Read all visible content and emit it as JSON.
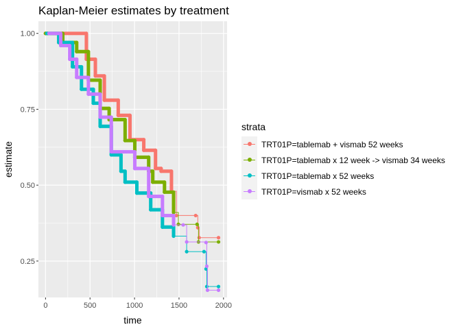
{
  "chart_data": {
    "type": "line",
    "step": true,
    "title": "Kaplan-Meier estimates by treatment",
    "xlabel": "time",
    "ylabel": "estimate",
    "xlim": [
      -80,
      2040
    ],
    "ylim": [
      0.13,
      1.04
    ],
    "xticks": [
      "0",
      "500",
      "1000",
      "1500",
      "2000"
    ],
    "xtick_values": [
      0,
      500,
      1000,
      1500,
      2000
    ],
    "yticks": [
      "0.25",
      "0.50",
      "0.75",
      "1.00"
    ],
    "ytick_values": [
      0.25,
      0.5,
      0.75,
      1.0
    ],
    "grid": true,
    "legend_title": "strata",
    "legend_position": "right",
    "series": [
      {
        "name": "TRT01P=tablemab + vismab 52 weeks",
        "color": "#F8766D",
        "x": [
          0,
          117,
          459,
          560,
          661,
          817,
          949,
          1104,
          1236,
          1299,
          1415,
          1470,
          1687,
          1711,
          1726,
          1944
        ],
        "y": [
          1.0,
          1.0,
          0.915,
          0.86,
          0.78,
          0.73,
          0.65,
          0.615,
          0.555,
          0.546,
          0.48,
          0.4,
          0.4,
          0.36,
          0.327,
          0.327
        ]
      },
      {
        "name": "TRT01P=tablemab x 12 week -> vismab 34 weeks",
        "color": "#7CAE00",
        "x": [
          0,
          194,
          350,
          482,
          614,
          715,
          894,
          1003,
          1159,
          1205,
          1337,
          1439,
          1493,
          1703,
          1719,
          1944
        ],
        "y": [
          1.0,
          0.97,
          0.94,
          0.846,
          0.753,
          0.716,
          0.647,
          0.592,
          0.546,
          0.51,
          0.477,
          0.41,
          0.371,
          0.371,
          0.313,
          0.313
        ]
      },
      {
        "name": "TRT01P=tablemab x 52 weeks",
        "color": "#00BFC4",
        "x": [
          15,
          148,
          303,
          404,
          537,
          614,
          739,
          848,
          894,
          1026,
          1182,
          1314,
          1439,
          1586,
          1781,
          1804,
          1812,
          1944
        ],
        "y": [
          1.0,
          0.97,
          0.89,
          0.816,
          0.77,
          0.694,
          0.6,
          0.546,
          0.51,
          0.474,
          0.419,
          0.362,
          0.332,
          0.281,
          0.281,
          0.224,
          0.166,
          0.166
        ]
      },
      {
        "name": "TRT01P=vismab x 52 weeks",
        "color": "#C77CFF",
        "x": [
          39,
          171,
          272,
          350,
          482,
          614,
          739,
          1003,
          1159,
          1314,
          1439,
          1547,
          1586,
          1804,
          1812,
          1820,
          1944
        ],
        "y": [
          1.0,
          0.96,
          0.915,
          0.855,
          0.8,
          0.724,
          0.61,
          0.555,
          0.463,
          0.4,
          0.369,
          0.369,
          0.313,
          0.311,
          0.233,
          0.154,
          0.154
        ]
      }
    ]
  }
}
